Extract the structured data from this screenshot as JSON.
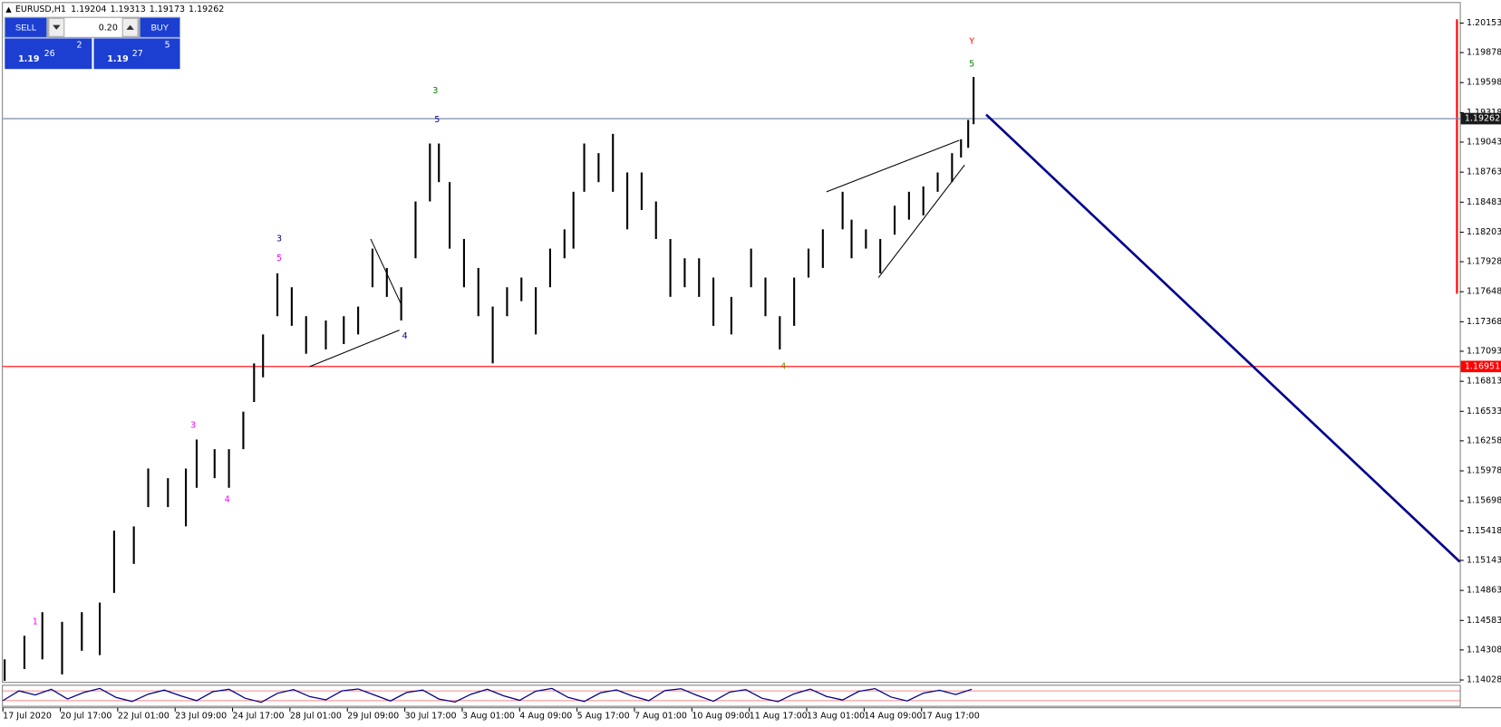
{
  "header": {
    "symbol": "EURUSD,H1",
    "ohlc": [
      1.19204,
      1.19313,
      1.19173,
      1.19262
    ]
  },
  "trade_panel": {
    "sell": "SELL",
    "buy": "BUY",
    "lot": "0.20",
    "bid": {
      "big": "1.19",
      "pips": "26",
      "frac": "2"
    },
    "ask": {
      "big": "1.19",
      "pips": "27",
      "frac": "5"
    }
  },
  "chart_data": {
    "type": "ohlc",
    "color": "#000000",
    "x": [
      1,
      12,
      22,
      33,
      44,
      54,
      62,
      73,
      81,
      92,
      102,
      108,
      118,
      126,
      134,
      140,
      145,
      153,
      161,
      169,
      180,
      190,
      198,
      206,
      214,
      222,
      230,
      238,
      243,
      249,
      257,
      265,
      273,
      281,
      289,
      297,
      305,
      313,
      318,
      324,
      332,
      340,
      348,
      356,
      364,
      372,
      380,
      388,
      396,
      406,
      417,
      425,
      433,
      441,
      449,
      457,
      468,
      473,
      481,
      489,
      497,
      505,
      513,
      521,
      529,
      534,
      538,
      541
    ],
    "high": [
      1.1422,
      1.1444,
      1.1466,
      1.1457,
      1.1466,
      1.1475,
      1.1542,
      1.1546,
      1.16,
      1.1591,
      1.16,
      1.1627,
      1.1618,
      1.1618,
      1.1653,
      1.1698,
      1.1725,
      1.1782,
      1.1769,
      1.1742,
      1.1738,
      1.1742,
      1.1751,
      1.1805,
      1.1787,
      1.1769,
      1.1849,
      1.1903,
      1.1903,
      1.1867,
      1.1814,
      1.1787,
      1.1751,
      1.1769,
      1.1778,
      1.1769,
      1.1805,
      1.1823,
      1.1858,
      1.1903,
      1.1894,
      1.1912,
      1.1876,
      1.1876,
      1.1849,
      1.1814,
      1.1796,
      1.1796,
      1.1778,
      1.176,
      1.1805,
      1.1778,
      1.1742,
      1.1778,
      1.1805,
      1.1823,
      1.1858,
      1.1832,
      1.1823,
      1.1814,
      1.1845,
      1.1858,
      1.1863,
      1.1876,
      1.1894,
      1.1907,
      1.1925,
      1.1965
    ],
    "low": [
      1.1402,
      1.1413,
      1.1422,
      1.1408,
      1.143,
      1.1426,
      1.1484,
      1.1511,
      1.1564,
      1.1564,
      1.1546,
      1.1582,
      1.1591,
      1.1582,
      1.1618,
      1.1662,
      1.1685,
      1.1742,
      1.1733,
      1.1707,
      1.1711,
      1.1716,
      1.1725,
      1.1769,
      1.176,
      1.1738,
      1.1796,
      1.1849,
      1.1867,
      1.1805,
      1.1769,
      1.1742,
      1.1698,
      1.1742,
      1.1756,
      1.1725,
      1.1769,
      1.1796,
      1.1805,
      1.1858,
      1.1867,
      1.1858,
      1.1823,
      1.1841,
      1.1814,
      1.176,
      1.1769,
      1.176,
      1.1733,
      1.1725,
      1.1769,
      1.1742,
      1.1711,
      1.1733,
      1.1778,
      1.1787,
      1.1823,
      1.1796,
      1.1805,
      1.1782,
      1.1818,
      1.1832,
      1.1836,
      1.1858,
      1.1867,
      1.189,
      1.1899,
      1.1921
    ],
    "xlim": [
      0,
      812
    ],
    "ylim": [
      1.1401,
      1.2034
    ],
    "xticks": [
      {
        "value": 0,
        "label": "17 Jul 2020"
      },
      {
        "value": 32,
        "label": "20 Jul 17:00"
      },
      {
        "value": 64,
        "label": "22 Jul 01:00"
      },
      {
        "value": 96,
        "label": "23 Jul 09:00"
      },
      {
        "value": 128,
        "label": "24 Jul 17:00"
      },
      {
        "value": 160,
        "label": "28 Jul 01:00"
      },
      {
        "value": 192,
        "label": "29 Jul 09:00"
      },
      {
        "value": 224,
        "label": "30 Jul 17:00"
      },
      {
        "value": 256,
        "label": "3 Aug 01:00"
      },
      {
        "value": 288,
        "label": "4 Aug 09:00"
      },
      {
        "value": 320,
        "label": "5 Aug 17:00"
      },
      {
        "value": 352,
        "label": "7 Aug 01:00"
      },
      {
        "value": 384,
        "label": "10 Aug 09:00"
      },
      {
        "value": 416,
        "label": "11 Aug 17:00"
      },
      {
        "value": 448,
        "label": "13 Aug 01:00"
      },
      {
        "value": 480,
        "label": "14 Aug 09:00"
      },
      {
        "value": 512,
        "label": "17 Aug 17:00"
      }
    ],
    "yticks": [
      1.20153,
      1.19878,
      1.19598,
      1.19318,
      1.19043,
      1.18763,
      1.18483,
      1.18203,
      1.17928,
      1.17648,
      1.17368,
      1.17093,
      1.16813,
      1.16533,
      1.16258,
      1.15978,
      1.15698,
      1.15418,
      1.15143,
      1.14863,
      1.14583,
      1.14308,
      1.14028
    ],
    "hlines": [
      {
        "value": 1.19262,
        "color": "#6f7f9f",
        "label_bg": "#1a1a1a"
      },
      {
        "value": 1.16951,
        "color": "#ff0000",
        "label_bg": "#ff0000"
      }
    ],
    "trendlines": [
      {
        "color": "#000000",
        "x": [
          171,
          221
        ],
        "p": [
          1.1695,
          1.1729
        ]
      },
      {
        "color": "#000000",
        "x": [
          205,
          222
        ],
        "p": [
          1.1814,
          1.1753
        ]
      },
      {
        "color": "#000000",
        "x": [
          459,
          533
        ],
        "p": [
          1.1858,
          1.1906
        ]
      },
      {
        "color": "#000000",
        "x": [
          488,
          536
        ],
        "p": [
          1.1778,
          1.1883
        ]
      },
      {
        "color": "#00008b",
        "x": [
          548,
          812
        ],
        "p": [
          1.193,
          1.1513
        ]
      }
    ],
    "annotations": [
      {
        "text": "1",
        "color": "#ff00ff",
        "x": 18,
        "p": 1.1457
      },
      {
        "text": "3",
        "color": "#ff00ff",
        "x": 106,
        "p": 1.164
      },
      {
        "text": "4",
        "color": "#ff00ff",
        "x": 125,
        "p": 1.1571
      },
      {
        "text": "3",
        "color": "#00008b",
        "x": 154,
        "p": 1.1814
      },
      {
        "text": "5",
        "color": "#ff00ff",
        "x": 154,
        "p": 1.1796
      },
      {
        "text": "4",
        "color": "#00008b",
        "x": 224,
        "p": 1.1723
      },
      {
        "text": "3",
        "color": "#008000",
        "x": 241,
        "p": 1.1952
      },
      {
        "text": "5",
        "color": "#00008b",
        "x": 242,
        "p": 1.1925
      },
      {
        "text": "4",
        "color": "#808000",
        "x": 435,
        "p": 1.1695
      },
      {
        "text": "Y",
        "color": "#ff0000",
        "x": 540,
        "p": 1.1998
      },
      {
        "text": "5",
        "color": "#008000",
        "x": 540,
        "p": 1.1977
      }
    ],
    "oscillator": {
      "color": "#00008b",
      "ylim": [
        0,
        100
      ],
      "levels": [
        80,
        20
      ],
      "x": [
        0,
        9,
        18,
        27,
        36,
        45,
        54,
        63,
        72,
        81,
        90,
        99,
        108,
        117,
        126,
        135,
        144,
        153,
        162,
        171,
        180,
        189,
        198,
        207,
        216,
        225,
        234,
        243,
        252,
        261,
        270,
        279,
        288,
        297,
        306,
        315,
        324,
        333,
        342,
        351,
        360,
        369,
        378,
        387,
        396,
        405,
        414,
        423,
        432,
        441,
        450,
        459,
        468,
        477,
        486,
        495,
        504,
        513,
        522,
        531,
        540
      ],
      "values": [
        20,
        80,
        55,
        90,
        30,
        70,
        95,
        40,
        15,
        60,
        85,
        50,
        20,
        75,
        90,
        35,
        10,
        65,
        88,
        45,
        25,
        80,
        92,
        55,
        18,
        70,
        85,
        30,
        12,
        60,
        90,
        50,
        22,
        78,
        95,
        40,
        15,
        68,
        86,
        48,
        20,
        82,
        93,
        52,
        16,
        72,
        88,
        35,
        14,
        62,
        91,
        46,
        24,
        77,
        94,
        42,
        18,
        66,
        84,
        58,
        90
      ]
    }
  }
}
